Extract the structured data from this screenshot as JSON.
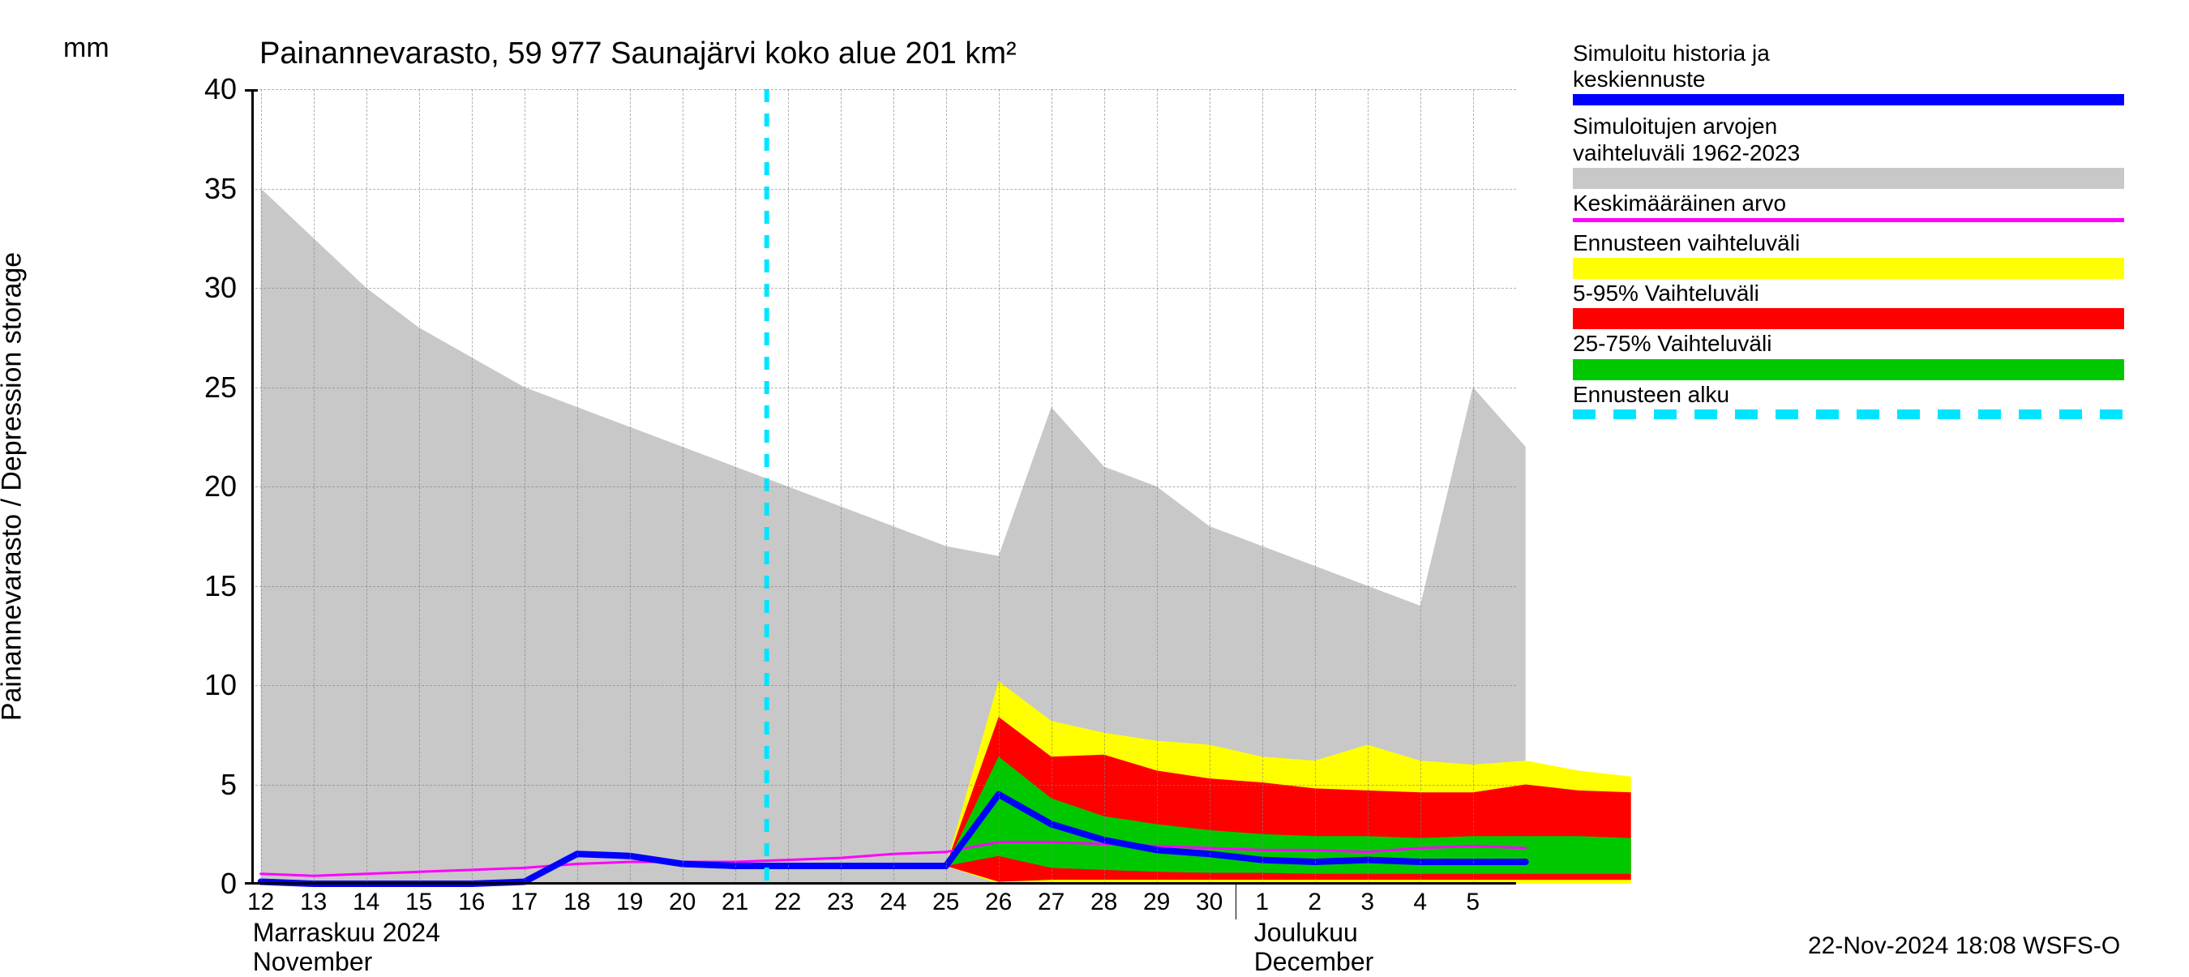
{
  "chart": {
    "type": "area+line",
    "title": "Painannevarasto, 59 977 Saunajärvi koko alue 201 km²",
    "y_axis_label": "Painannevarasto / Depression storage",
    "y_unit": "mm",
    "ylim": [
      0,
      40
    ],
    "yticks": [
      0,
      5,
      10,
      15,
      20,
      25,
      30,
      35,
      40
    ],
    "x_dates": [
      "12",
      "13",
      "14",
      "15",
      "16",
      "17",
      "18",
      "19",
      "20",
      "21",
      "22",
      "23",
      "24",
      "25",
      "26",
      "27",
      "28",
      "29",
      "30",
      "1",
      "2",
      "3",
      "4",
      "5"
    ],
    "month_labels": [
      {
        "fi": "Marraskuu 2024",
        "en": "November",
        "at_index": 0
      },
      {
        "fi": "Joulukuu",
        "en": "December",
        "at_index": 19
      }
    ],
    "forecast_start_index": 9.6,
    "colors": {
      "historical_range": "#c8c8c8",
      "forecast_range_outer": "#ffff00",
      "forecast_range_5_95": "#ff0000",
      "forecast_range_25_75": "#00c800",
      "sim_history_line": "#0000ff",
      "mean_line": "#ff00ff",
      "forecast_start_line": "#00e5ff",
      "grid": "#808080",
      "axis": "#000000",
      "background": "#ffffff"
    },
    "line_widths": {
      "sim_history": 8,
      "mean": 3,
      "forecast_start": 6
    },
    "series": {
      "historical_upper": [
        35,
        32.5,
        30,
        28,
        26.5,
        25,
        24,
        23,
        22,
        21,
        20,
        19,
        18,
        17,
        16.5,
        24,
        21,
        20,
        18,
        17,
        16,
        15,
        14,
        25,
        22
      ],
      "historical_lower": [
        0,
        0,
        0,
        0,
        0,
        0,
        0,
        0,
        0,
        0,
        0,
        0,
        0,
        0,
        0,
        0,
        0,
        0,
        0,
        0,
        0,
        0,
        0,
        0,
        0
      ],
      "mean": [
        0.5,
        0.4,
        0.5,
        0.6,
        0.7,
        0.8,
        1,
        1.1,
        1.1,
        1.1,
        1.2,
        1.3,
        1.5,
        1.6,
        2.1,
        2.1,
        2,
        1.9,
        1.8,
        1.7,
        1.7,
        1.6,
        1.8,
        1.9,
        1.8
      ],
      "sim_blue": [
        0.1,
        0,
        0,
        0,
        0,
        0.1,
        1.5,
        1.4,
        1,
        0.9,
        0.9,
        0.9,
        0.9,
        0.9,
        4.5,
        3,
        2.2,
        1.7,
        1.5,
        1.2,
        1.1,
        1.2,
        1.1,
        1.1,
        1.1
      ],
      "f_outer_up": [
        0.9,
        0.9,
        10.2,
        8.2,
        7.6,
        7.2,
        7,
        6.4,
        6.2,
        7,
        6.2,
        6,
        6.2,
        5.7,
        5.4
      ],
      "f_outer_lo": [
        0.9,
        0.9,
        0,
        0,
        0,
        0,
        0,
        0,
        0,
        0,
        0,
        0,
        0,
        0,
        0
      ],
      "f_5_95_up": [
        0.9,
        0.9,
        8.4,
        6.4,
        6.5,
        5.7,
        5.3,
        5.1,
        4.8,
        4.7,
        4.6,
        4.6,
        5,
        4.7,
        4.6
      ],
      "f_5_95_lo": [
        0.9,
        0.9,
        0.1,
        0.2,
        0.2,
        0.2,
        0.2,
        0.2,
        0.2,
        0.2,
        0.2,
        0.2,
        0.2,
        0.2,
        0.2
      ],
      "f_25_75_up": [
        0.9,
        0.9,
        6.4,
        4.3,
        3.4,
        3,
        2.7,
        2.5,
        2.4,
        2.4,
        2.3,
        2.4,
        2.4,
        2.4,
        2.3
      ],
      "f_25_75_lo": [
        0.9,
        0.9,
        1.4,
        0.8,
        0.7,
        0.6,
        0.55,
        0.55,
        0.5,
        0.5,
        0.5,
        0.5,
        0.5,
        0.5,
        0.5
      ]
    },
    "forecast_x_offset": 12
  },
  "legend": {
    "items": [
      {
        "label_line1": "Simuloitu historia ja",
        "label_line2": "keskiennuste",
        "type": "line",
        "color": "#0000ff",
        "thickness": 14
      },
      {
        "label_line1": "Simuloitujen arvojen",
        "label_line2": "vaihteluväli 1962-2023",
        "type": "swatch",
        "color": "#c8c8c8"
      },
      {
        "label_line1": "Keskimääräinen arvo",
        "label_line2": "",
        "type": "line",
        "color": "#ff00ff",
        "thickness": 5
      },
      {
        "label_line1": "Ennusteen vaihteluväli",
        "label_line2": "",
        "type": "swatch",
        "color": "#ffff00"
      },
      {
        "label_line1": "5-95% Vaihteluväli",
        "label_line2": "",
        "type": "swatch",
        "color": "#ff0000"
      },
      {
        "label_line1": "25-75% Vaihteluväli",
        "label_line2": "",
        "type": "swatch",
        "color": "#00c800"
      },
      {
        "label_line1": "Ennusteen alku",
        "label_line2": "",
        "type": "dashed",
        "color": "#00e5ff",
        "thickness": 12
      }
    ]
  },
  "footer": {
    "text": "22-Nov-2024 18:08 WSFS-O"
  }
}
